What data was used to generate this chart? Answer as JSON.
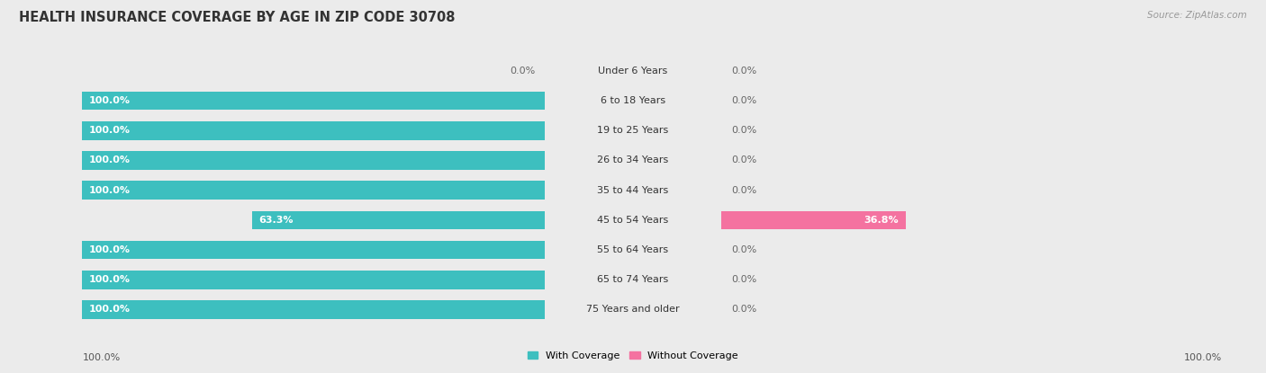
{
  "title": "HEALTH INSURANCE COVERAGE BY AGE IN ZIP CODE 30708",
  "source": "Source: ZipAtlas.com",
  "categories": [
    "Under 6 Years",
    "6 to 18 Years",
    "19 to 25 Years",
    "26 to 34 Years",
    "35 to 44 Years",
    "45 to 54 Years",
    "55 to 64 Years",
    "65 to 74 Years",
    "75 Years and older"
  ],
  "with_coverage": [
    0.0,
    100.0,
    100.0,
    100.0,
    100.0,
    63.3,
    100.0,
    100.0,
    100.0
  ],
  "without_coverage": [
    0.0,
    0.0,
    0.0,
    0.0,
    0.0,
    36.8,
    0.0,
    0.0,
    0.0
  ],
  "color_with": "#3dbfbf",
  "color_without": "#f472a0",
  "color_with_bg": "#e0f4f4",
  "color_without_bg": "#fce8ef",
  "row_bg": "#f5f5f5",
  "bg_color": "#ebebeb",
  "legend_with": "With Coverage",
  "legend_without": "Without Coverage",
  "x_left_label": "100.0%",
  "x_right_label": "100.0%",
  "title_fontsize": 10.5,
  "label_fontsize": 8.0,
  "source_fontsize": 7.5
}
